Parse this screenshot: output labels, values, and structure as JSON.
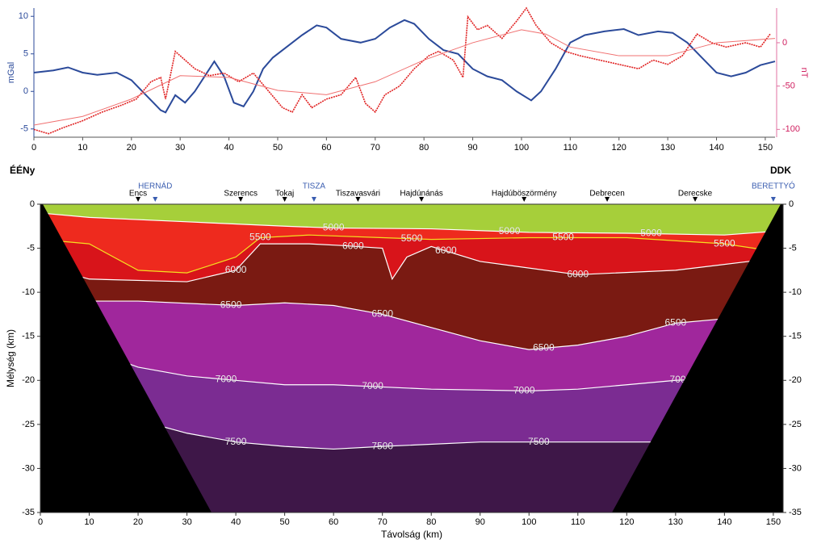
{
  "chart_data": [
    {
      "type": "line",
      "ylabel": "mGal",
      "y2label": "nT",
      "xlim": [
        0,
        152
      ],
      "xticks": [
        0,
        10,
        20,
        30,
        40,
        50,
        60,
        70,
        80,
        90,
        100,
        110,
        120,
        130,
        140,
        150
      ],
      "ylim": [
        -6.1,
        11.1
      ],
      "yticks": [
        -5,
        0,
        5,
        10
      ],
      "y2lim": [
        -109,
        40
      ],
      "y2ticks": [
        -100,
        -50,
        0
      ],
      "series": [
        {
          "color": "#2b4a9a",
          "x": [
            0,
            4,
            7,
            10,
            13,
            17,
            20,
            23,
            26,
            27,
            29,
            31,
            33,
            35,
            37,
            39,
            41,
            43,
            45,
            47,
            49,
            52,
            55,
            58,
            60,
            63,
            67,
            70,
            73,
            76,
            78,
            81,
            84,
            87,
            90,
            93,
            96,
            99,
            102,
            104,
            107,
            110,
            113,
            117,
            121,
            124,
            128,
            131,
            134,
            137,
            140,
            143,
            146,
            149,
            152
          ],
          "values": [
            2.5,
            2.8,
            3.2,
            2.5,
            2.2,
            2.5,
            1.5,
            -0.5,
            -2.5,
            -2.8,
            -0.5,
            -1.5,
            0,
            2,
            4,
            2,
            -1.5,
            -2,
            0,
            3,
            4.5,
            6,
            7.5,
            8.8,
            8.5,
            7,
            6.5,
            7,
            8.5,
            9.5,
            9,
            7,
            5.5,
            5,
            3,
            2,
            1.5,
            0,
            -1.2,
            0,
            3,
            6.5,
            7.5,
            8,
            8.3,
            7.5,
            8,
            7.8,
            6.5,
            4.5,
            2.5,
            2,
            2.5,
            3.5,
            4
          ]
        },
        {
          "color": "#e02020",
          "axis": "y2",
          "x": [
            0,
            3,
            6,
            10,
            14,
            18,
            21,
            24,
            26,
            27,
            29,
            31,
            33,
            36,
            39,
            42,
            45,
            48,
            51,
            53,
            55,
            57,
            60,
            63,
            66,
            68,
            70,
            72,
            75,
            78,
            81,
            83,
            86,
            88,
            89,
            91,
            93,
            96,
            99,
            101,
            103,
            106,
            109,
            112,
            116,
            120,
            124,
            127,
            130,
            133,
            136,
            139,
            142,
            146,
            149,
            151
          ],
          "values": [
            -100,
            -105,
            -98,
            -90,
            -80,
            -72,
            -65,
            -45,
            -40,
            -65,
            -10,
            -20,
            -30,
            -38,
            -35,
            -45,
            -35,
            -55,
            -75,
            -80,
            -60,
            -75,
            -65,
            -60,
            -40,
            -70,
            -80,
            -60,
            -50,
            -30,
            -15,
            -10,
            -20,
            -40,
            30,
            15,
            20,
            5,
            25,
            40,
            20,
            0,
            -10,
            -15,
            -20,
            -25,
            -30,
            -20,
            -25,
            -15,
            10,
            0,
            -5,
            0,
            -5,
            10
          ]
        },
        {
          "color": "#f07070",
          "axis": "y2",
          "x": [
            0,
            10,
            20,
            30,
            40,
            50,
            60,
            70,
            80,
            90,
            100,
            105,
            110,
            120,
            130,
            140,
            152
          ],
          "values": [
            -95,
            -85,
            -65,
            -38,
            -40,
            -55,
            -60,
            -45,
            -20,
            0,
            15,
            10,
            -5,
            -15,
            -15,
            0,
            5
          ]
        }
      ]
    },
    {
      "type": "contour",
      "xlabel": "Távolság (km)",
      "ylabel": "Mélység (km)",
      "left_label": "ÉÉNy",
      "right_label": "DDK",
      "xlim": [
        0,
        152
      ],
      "xticks": [
        0,
        10,
        20,
        30,
        40,
        50,
        60,
        70,
        80,
        90,
        100,
        110,
        120,
        130,
        140,
        150
      ],
      "ylim": [
        -35,
        0
      ],
      "yticks": [
        0,
        -5,
        -10,
        -15,
        -20,
        -25,
        -30,
        -35
      ],
      "stations": {
        "names": [
          "Encs",
          "Szerencs",
          "Tokaj",
          "Tiszavasvári",
          "Hajdúnánás",
          "Hajdúböszörmény",
          "Debrecen",
          "Derecske"
        ],
        "x": [
          20,
          41,
          50,
          65,
          78,
          99,
          116,
          134
        ]
      },
      "rivers": {
        "names": [
          "HERNÁD",
          "TISZA",
          "BERETTYÓ"
        ],
        "x": [
          23.5,
          56,
          150
        ]
      },
      "band_colors": [
        "#a6cf3a",
        "#ee2a1e",
        "#d8141a",
        "#7a1a12",
        "#a0279c",
        "#7b2c92",
        "#3e1748"
      ],
      "contours": [
        {
          "level": 5000,
          "color": "#ffffff",
          "x": [
            0,
            10,
            30,
            50,
            60,
            80,
            100,
            120,
            140,
            152
          ],
          "depths": [
            -1,
            -1.5,
            -2,
            -2.5,
            -2.7,
            -2.8,
            -3.2,
            -3.3,
            -3.5,
            -3
          ],
          "label_x": [
            60,
            96,
            125
          ]
        },
        {
          "level": 5500,
          "color": "#f5e020",
          "x": [
            0,
            10,
            20,
            30,
            40,
            45,
            55,
            70,
            80,
            100,
            120,
            140,
            152
          ],
          "depths": [
            -4,
            -4.5,
            -7.5,
            -7.8,
            -6,
            -3.8,
            -3.5,
            -3.8,
            -4,
            -3.8,
            -3.8,
            -4.5,
            -5.5
          ],
          "label_x": [
            45,
            76,
            107,
            140
          ]
        },
        {
          "level": 6000,
          "color": "#ffffff",
          "x": [
            0,
            10,
            30,
            40,
            45,
            55,
            62,
            70,
            72,
            75,
            80,
            90,
            110,
            130,
            145,
            152
          ],
          "depths": [
            -7,
            -8.5,
            -8.8,
            -7.5,
            -4.5,
            -4.5,
            -4.7,
            -5,
            -8.5,
            -6,
            -4.8,
            -6.5,
            -8,
            -7.5,
            -6.5,
            -6
          ],
          "label_x": [
            40,
            64,
            83,
            110
          ]
        },
        {
          "level": 6500,
          "color": "#ffffff",
          "x": [
            0,
            20,
            40,
            50,
            60,
            70,
            80,
            90,
            100,
            110,
            120,
            130,
            140,
            152
          ],
          "depths": [
            -11,
            -11,
            -11.5,
            -11.2,
            -11.5,
            -12.5,
            -14,
            -15.5,
            -16.5,
            -16,
            -15,
            -13.5,
            -13,
            -12.5
          ],
          "label_x": [
            39,
            70,
            103,
            130
          ]
        },
        {
          "level": 7000,
          "color": "#ffffff",
          "x": [
            0,
            10,
            20,
            30,
            40,
            50,
            60,
            80,
            100,
            110,
            120,
            130,
            152
          ],
          "depths": [
            -16,
            -16.5,
            -18.5,
            -19.5,
            -20,
            -20.5,
            -20.5,
            -21,
            -21.2,
            -21,
            -20.5,
            -20,
            -19.5
          ],
          "label_x": [
            38,
            68,
            99,
            131
          ]
        },
        {
          "level": 7500,
          "color": "#ffffff",
          "x": [
            0,
            20,
            30,
            40,
            50,
            60,
            70,
            90,
            110,
            130,
            152
          ],
          "depths": [
            -24,
            -24.5,
            -26,
            -27,
            -27.5,
            -27.8,
            -27.5,
            -27,
            -27,
            -27,
            -26.5
          ],
          "label_x": [
            40,
            70,
            102
          ]
        }
      ]
    }
  ]
}
